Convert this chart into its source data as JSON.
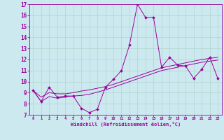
{
  "xlabel": "Windchill (Refroidissement éolien,°C)",
  "xlim": [
    -0.5,
    23.5
  ],
  "ylim": [
    7,
    17
  ],
  "xticks": [
    0,
    1,
    2,
    3,
    4,
    5,
    6,
    7,
    8,
    9,
    10,
    11,
    12,
    13,
    14,
    15,
    16,
    17,
    18,
    19,
    20,
    21,
    22,
    23
  ],
  "yticks": [
    7,
    8,
    9,
    10,
    11,
    12,
    13,
    14,
    15,
    16,
    17
  ],
  "bg_color": "#cde9f0",
  "line_color": "#990099",
  "grid_color": "#b0d4cc",
  "line1_y": [
    9.2,
    8.2,
    9.5,
    8.6,
    8.7,
    8.7,
    7.6,
    7.2,
    7.5,
    9.5,
    10.2,
    11.0,
    13.3,
    17.0,
    15.8,
    15.8,
    11.3,
    12.2,
    11.5,
    11.4,
    10.3,
    11.1,
    12.2,
    10.3
  ],
  "line2_y": [
    9.2,
    8.6,
    9.0,
    8.9,
    8.9,
    9.0,
    9.15,
    9.25,
    9.4,
    9.55,
    9.75,
    10.0,
    10.25,
    10.5,
    10.75,
    11.0,
    11.25,
    11.4,
    11.55,
    11.7,
    11.85,
    12.0,
    12.1,
    12.2
  ],
  "line3_y": [
    9.2,
    8.2,
    8.65,
    8.5,
    8.6,
    8.7,
    8.75,
    8.85,
    9.05,
    9.25,
    9.5,
    9.75,
    10.0,
    10.25,
    10.5,
    10.75,
    11.0,
    11.15,
    11.3,
    11.45,
    11.6,
    11.75,
    11.85,
    11.95
  ]
}
